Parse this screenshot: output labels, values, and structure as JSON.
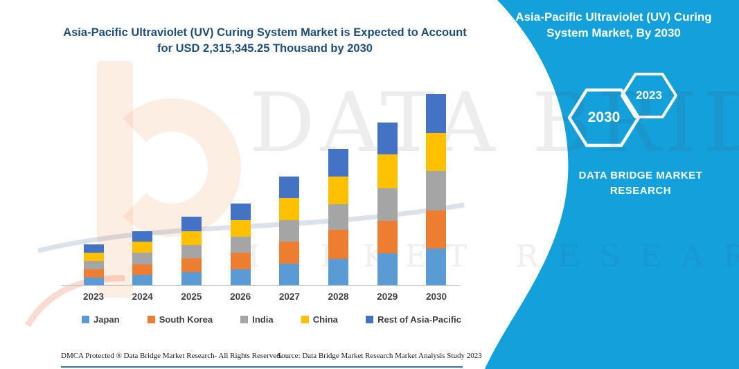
{
  "chart": {
    "title": "Asia-Pacific Ultraviolet (UV) Curing System Market is Expected to Account for USD 2,315,345.25 Thousand by 2030",
    "title_color": "#1F4E79"
  },
  "chart_data": {
    "type": "bar",
    "stacked": true,
    "title": "Asia-Pacific Ultraviolet (UV) Curing System Market is Expected to Account for USD 2,315,345.25 Thousand by 2030",
    "unit": "USD Thousand",
    "categories": [
      "2023",
      "2024",
      "2025",
      "2026",
      "2027",
      "2028",
      "2029",
      "2030"
    ],
    "series": [
      {
        "name": "Japan",
        "color": "#5B9BD5",
        "values": [
          89900,
          126000,
          159600,
          196100,
          257900,
          321900,
          389200,
          447800
        ]
      },
      {
        "name": "South Korea",
        "color": "#ED7D31",
        "values": [
          106700,
          128500,
          168000,
          201600,
          268800,
          350300,
          392400,
          462000
        ]
      },
      {
        "name": "India",
        "color": "#A5A5A5",
        "values": [
          98300,
          140300,
          159600,
          190700,
          262900,
          313300,
          392400,
          476300
        ]
      },
      {
        "name": "China",
        "color": "#FFC000",
        "values": [
          98300,
          137000,
          168000,
          201600,
          268800,
          336000,
          409100,
          462000
        ]
      },
      {
        "name": "Rest of Asia-Pacific",
        "color": "#4472C4",
        "values": [
          98300,
          126000,
          176400,
          201600,
          257900,
          330100,
          389200,
          467245.25
        ]
      }
    ],
    "totals": [
      491500,
      657800,
      831600,
      991600,
      1316300,
      1651600,
      1972300,
      2315345.25
    ],
    "ylim": [
      0,
      2400000
    ],
    "grid": false,
    "legend_position": "bottom",
    "values_are_estimates_read_from_pixels": true
  },
  "side_panel": {
    "background": "#14A0DB",
    "title": "Asia-Pacific Ultraviolet (UV) Curing System Market, By 2030",
    "badges": [
      {
        "label": "2030"
      },
      {
        "label": "2023"
      }
    ],
    "brand": "DATA BRIDGE MARKET RESEARCH"
  },
  "watermark": {
    "line1": "DATA BRIDGE",
    "line2": "MARKET RESEARCH"
  },
  "footer": {
    "left": "DMCA Protected ® Data Bridge Market Research-  All Rights Reserved.",
    "right": "Source: Data Bridge Market Research  Market Analysis Study 2023"
  }
}
